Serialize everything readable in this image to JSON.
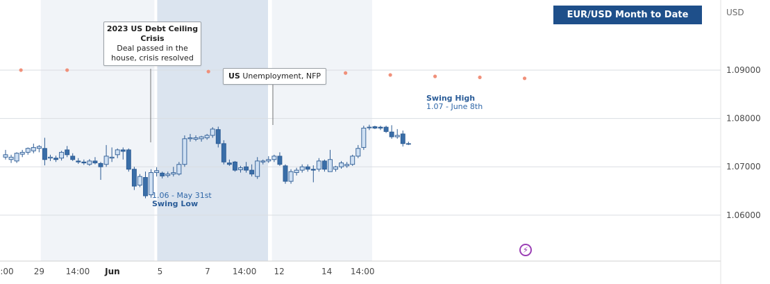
{
  "chart_data": {
    "type": "candlestick",
    "title": "EUR/USD Month to Date (June)",
    "unit": "USD",
    "y_ticks": [
      "1.09000",
      "1.08000",
      "1.07000",
      "1.06000"
    ],
    "y_tick_values": [
      1.09,
      1.08,
      1.07,
      1.06
    ],
    "ylim": [
      1.0505,
      1.1045
    ],
    "x_ticks": [
      {
        "label": "14:00",
        "bold": false,
        "i": -0.7
      },
      {
        "label": "29",
        "bold": false,
        "i": 6.0
      },
      {
        "label": "14:00",
        "bold": false,
        "i": 12.9
      },
      {
        "label": "Jun",
        "bold": true,
        "i": 19.1
      },
      {
        "label": "5",
        "bold": false,
        "i": 27.6
      },
      {
        "label": "7",
        "bold": false,
        "i": 36.1
      },
      {
        "label": "14:00",
        "bold": false,
        "i": 42.7
      },
      {
        "label": "12",
        "bold": false,
        "i": 48.9
      },
      {
        "label": "14",
        "bold": false,
        "i": 57.4
      },
      {
        "label": "14:00",
        "bold": false,
        "i": 63.8
      }
    ],
    "shaded_regions": [
      {
        "from": 6.3,
        "to": 26.6,
        "shade": "light"
      },
      {
        "from": 27.1,
        "to": 46.9,
        "shade": "dark"
      },
      {
        "from": 47.6,
        "to": 65.5,
        "shade": "light"
      }
    ],
    "candles": [
      [
        1.072,
        1.0735,
        1.0715,
        1.0725
      ],
      [
        1.0715,
        1.0725,
        1.0708,
        1.072
      ],
      [
        1.0712,
        1.073,
        1.0708,
        1.0728
      ],
      [
        1.0726,
        1.0735,
        1.072,
        1.073
      ],
      [
        1.073,
        1.074,
        1.0725,
        1.0738
      ],
      [
        1.0733,
        1.0748,
        1.0728,
        1.074
      ],
      [
        1.0738,
        1.0745,
        1.073,
        1.0742
      ],
      [
        1.0738,
        1.076,
        1.0703,
        1.0715
      ],
      [
        1.0718,
        1.0725,
        1.0712,
        1.072
      ],
      [
        1.0718,
        1.0723,
        1.071,
        1.0715
      ],
      [
        1.0718,
        1.0733,
        1.0713,
        1.073
      ],
      [
        1.0735,
        1.0743,
        1.072,
        1.0725
      ],
      [
        1.0722,
        1.0728,
        1.0712,
        1.0715
      ],
      [
        1.0712,
        1.0718,
        1.0706,
        1.071
      ],
      [
        1.071,
        1.0715,
        1.0704,
        1.0708
      ],
      [
        1.0705,
        1.0716,
        1.0702,
        1.0712
      ],
      [
        1.0712,
        1.072,
        1.0705,
        1.0708
      ],
      [
        1.0707,
        1.071,
        1.0673,
        1.07
      ],
      [
        1.0705,
        1.0745,
        1.07,
        1.0722
      ],
      [
        1.0718,
        1.074,
        1.071,
        1.072
      ],
      [
        1.0725,
        1.0738,
        1.0718,
        1.0735
      ],
      [
        1.0735,
        1.074,
        1.0715,
        1.0732
      ],
      [
        1.0735,
        1.0738,
        1.069,
        1.0695
      ],
      [
        1.0695,
        1.07,
        1.0652,
        1.066
      ],
      [
        1.0662,
        1.0685,
        1.0658,
        1.068
      ],
      [
        1.0678,
        1.069,
        1.0635,
        1.064
      ],
      [
        1.0642,
        1.0695,
        1.0636,
        1.0688
      ],
      [
        1.0688,
        1.0699,
        1.068,
        1.0692
      ],
      [
        1.0687,
        1.069,
        1.0676,
        1.0681
      ],
      [
        1.0682,
        1.069,
        1.0678,
        1.0685
      ],
      [
        1.0685,
        1.07,
        1.068,
        1.0688
      ],
      [
        1.0685,
        1.071,
        1.0682,
        1.0705
      ],
      [
        1.0705,
        1.0765,
        1.07,
        1.0758
      ],
      [
        1.0758,
        1.0768,
        1.0752,
        1.076
      ],
      [
        1.0757,
        1.0765,
        1.0753,
        1.076
      ],
      [
        1.0758,
        1.0764,
        1.0752,
        1.0762
      ],
      [
        1.076,
        1.0768,
        1.0756,
        1.0765
      ],
      [
        1.0765,
        1.0782,
        1.076,
        1.0778
      ],
      [
        1.0777,
        1.0783,
        1.074,
        1.0748
      ],
      [
        1.0748,
        1.0755,
        1.0705,
        1.071
      ],
      [
        1.0708,
        1.0715,
        1.0702,
        1.0705
      ],
      [
        1.071,
        1.0712,
        1.069,
        1.0693
      ],
      [
        1.0694,
        1.0702,
        1.0688,
        1.0698
      ],
      [
        1.07,
        1.071,
        1.0688,
        1.0693
      ],
      [
        1.0693,
        1.0705,
        1.068,
        1.0685
      ],
      [
        1.068,
        1.072,
        1.0675,
        1.0712
      ],
      [
        1.071,
        1.0715,
        1.0705,
        1.0712
      ],
      [
        1.0712,
        1.0722,
        1.0708,
        1.0715
      ],
      [
        1.0715,
        1.0725,
        1.071,
        1.0722
      ],
      [
        1.0722,
        1.073,
        1.0702,
        1.0705
      ],
      [
        1.0702,
        1.0705,
        1.0665,
        1.067
      ],
      [
        1.067,
        1.0695,
        1.0665,
        1.069
      ],
      [
        1.0688,
        1.0698,
        1.0682,
        1.0693
      ],
      [
        1.0693,
        1.0705,
        1.0688,
        1.07
      ],
      [
        1.07,
        1.0705,
        1.069,
        1.0695
      ],
      [
        1.0695,
        1.0703,
        1.0668,
        1.0693
      ],
      [
        1.0695,
        1.0718,
        1.069,
        1.0712
      ],
      [
        1.0712,
        1.0715,
        1.069,
        1.0695
      ],
      [
        1.069,
        1.0735,
        1.069,
        1.0715
      ],
      [
        1.0695,
        1.0702,
        1.069,
        1.07
      ],
      [
        1.07,
        1.0712,
        1.0696,
        1.0708
      ],
      [
        1.0702,
        1.071,
        1.0698,
        1.0705
      ],
      [
        1.0705,
        1.0725,
        1.0702,
        1.0722
      ],
      [
        1.0722,
        1.0745,
        1.0718,
        1.0738
      ],
      [
        1.074,
        1.0785,
        1.0735,
        1.078
      ],
      [
        1.0782,
        1.0787,
        1.0776,
        1.0782
      ],
      [
        1.0783,
        1.0785,
        1.0778,
        1.078
      ],
      [
        1.0782,
        1.0785,
        1.0776,
        1.078
      ],
      [
        1.0782,
        1.0785,
        1.077,
        1.0773
      ],
      [
        1.0772,
        1.0786,
        1.0758,
        1.0762
      ],
      [
        1.0762,
        1.0778,
        1.0758,
        1.0765
      ],
      [
        1.0768,
        1.0775,
        1.0742,
        1.0748
      ],
      [
        1.0748,
        1.0752,
        1.0745,
        1.0748
      ]
    ],
    "candle_x": {
      "i0": 0,
      "x0": 8,
      "step": 8.06
    },
    "dots": [
      {
        "i": 2.75,
        "y": 1.09
      },
      {
        "i": 11.0,
        "y": 1.09
      },
      {
        "i": 36.25,
        "y": 1.0897
      },
      {
        "i": 60.75,
        "y": 1.0894
      },
      {
        "i": 68.75,
        "y": 1.089
      },
      {
        "i": 76.75,
        "y": 1.0887
      },
      {
        "i": 84.75,
        "y": 1.0885
      },
      {
        "i": 92.75,
        "y": 1.0883
      }
    ],
    "dot_x": {
      "x0": 8,
      "step": 8.06
    }
  },
  "annotations": {
    "debt_ceiling": {
      "title": "2023 US Debt Ceiling Crisis",
      "body": "Deal passed in the house, crisis resolved"
    },
    "unemployment": {
      "title": "US",
      "body": "Unemployment, NFP"
    },
    "swing_high": {
      "label": "Swing High",
      "detail": "1.07 - June 8th"
    },
    "swing_low": {
      "label": "Swing Low",
      "detail": "1.06 - May 31st"
    },
    "event_icon": "lightning-bolt-icon"
  },
  "colors": {
    "candle_up_fill": "#cfe0f3",
    "candle_down_fill": "#3a6ea8",
    "candle_stroke": "#2b5a93",
    "dots": "#f0907a",
    "title_bg": "#1e4f8a",
    "shade_light": "#f1f4f8",
    "shade_dark": "#dbe4ef"
  }
}
